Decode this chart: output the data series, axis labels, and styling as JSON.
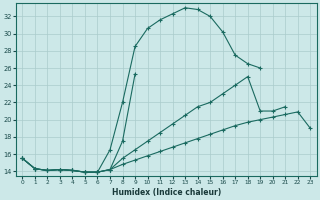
{
  "xlabel": "Humidex (Indice chaleur)",
  "bg_color": "#cce8e8",
  "grid_color": "#aacccc",
  "line_color": "#1a6a60",
  "ylim": [
    13.5,
    33.5
  ],
  "xlim": [
    -0.5,
    23.5
  ],
  "yticks": [
    14,
    16,
    18,
    20,
    22,
    24,
    26,
    28,
    30,
    32
  ],
  "xticks": [
    0,
    1,
    2,
    3,
    4,
    5,
    6,
    7,
    8,
    9,
    10,
    11,
    12,
    13,
    14,
    15,
    16,
    17,
    18,
    19,
    20,
    21,
    22,
    23
  ],
  "line1_y": [
    15.5,
    14.3,
    14.1,
    14.2,
    14.1,
    13.9,
    13.9,
    16.5,
    22.0,
    28.5,
    30.6,
    31.6,
    32.3,
    33.0,
    32.8,
    32.0,
    30.2,
    27.5,
    26.5,
    26.0,
    null,
    null,
    null,
    null
  ],
  "line2_y": [
    15.5,
    14.3,
    14.1,
    14.2,
    14.1,
    13.9,
    13.9,
    14.2,
    17.5,
    25.3,
    null,
    null,
    null,
    null,
    null,
    null,
    null,
    null,
    null,
    null,
    null,
    null,
    null,
    null
  ],
  "line3_y": [
    15.5,
    14.3,
    14.1,
    14.2,
    14.1,
    13.9,
    13.9,
    14.2,
    15.5,
    16.5,
    17.5,
    18.5,
    19.5,
    20.5,
    21.5,
    22.0,
    23.0,
    24.0,
    25.0,
    21.0,
    21.0,
    21.5,
    null,
    null
  ],
  "line4_y": [
    15.5,
    14.3,
    14.1,
    14.2,
    14.1,
    13.9,
    13.9,
    14.2,
    14.8,
    15.3,
    15.8,
    16.3,
    16.8,
    17.3,
    17.8,
    18.3,
    18.8,
    19.3,
    19.7,
    20.0,
    20.3,
    20.6,
    20.9,
    19.0
  ]
}
